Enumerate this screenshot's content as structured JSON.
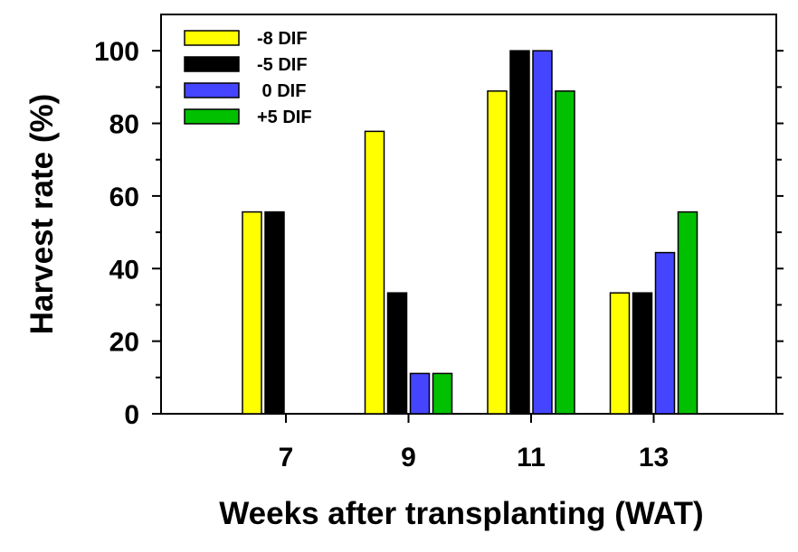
{
  "chart_data": {
    "type": "bar",
    "categories": [
      "7",
      "9",
      "11",
      "13"
    ],
    "series": [
      {
        "name": "-8 DIF",
        "color": "#ffff00",
        "values": [
          55.6,
          77.8,
          88.9,
          33.3
        ]
      },
      {
        "name": "-5 DIF",
        "color": "#000000",
        "values": [
          55.6,
          33.3,
          100,
          33.3
        ]
      },
      {
        "name": " 0 DIF",
        "color": "#4545ff",
        "values": [
          0,
          11.1,
          100,
          44.4
        ]
      },
      {
        "name": "+5 DIF",
        "color": "#00c000",
        "values": [
          0,
          11.1,
          88.9,
          55.6
        ]
      }
    ],
    "xlabel": "Weeks after transplanting (WAT)",
    "ylabel": "Harvest rate (%)",
    "ylim": [
      0,
      110
    ],
    "yticks": [
      0,
      20,
      40,
      60,
      80,
      100
    ],
    "yticklabels": [
      "0",
      "20",
      "40",
      "60",
      "80",
      "100"
    ],
    "grid": false,
    "legend_position": "top-left"
  }
}
